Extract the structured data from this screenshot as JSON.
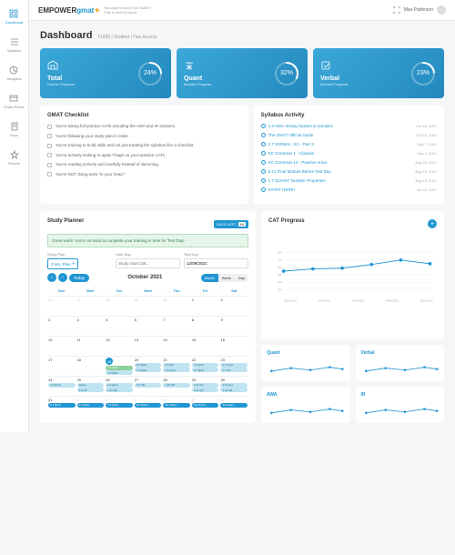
{
  "header": {
    "logo_empower": "EMPOWER",
    "logo_gmat": "gmat",
    "tagline1": "You want to beat The GMAT?",
    "tagline2": "This is how it's done.",
    "user_name": "Max Patterson"
  },
  "sidebar": {
    "items": [
      {
        "label": "Dashboard",
        "icon": "dashboard-icon",
        "active": true
      },
      {
        "label": "Syllabus",
        "icon": "syllabus-icon"
      },
      {
        "label": "Analytics",
        "icon": "analytics-icon"
      },
      {
        "label": "Exam Packs",
        "icon": "exampack-icon"
      },
      {
        "label": "Docs",
        "icon": "docs-icon"
      },
      {
        "label": "Review",
        "icon": "review-icon"
      }
    ]
  },
  "title": "Dashboard",
  "meta": "11995  |  Student  |  Has Access",
  "stats": [
    {
      "label": "Total",
      "sub": "Course Progress",
      "value": "24%",
      "pct": 24
    },
    {
      "label": "Quant",
      "sub": "Module Progress",
      "value": "32%",
      "pct": 32
    },
    {
      "label": "Verbal",
      "sub": "Module Progress",
      "value": "23%",
      "pct": 23
    }
  ],
  "checklist": {
    "title": "GMAT Checklist",
    "items": [
      "You're taking full practice CATs including the AWA and IR sections.",
      "You're following your study plan in order.",
      "You're training to build skills and not just treating the syllabus like a checklist.",
      "You're actively looking to apply Triage on your practice CATs.",
      "You're reading actively and carefully instead of skimming.",
      "You're NOT doing work \"in your head.\""
    ]
  },
  "syllabus_activity": {
    "title": "Syllabus Activity",
    "items": [
      {
        "name": "4.3 AWA: Essay System & Samples",
        "date": "Oct 18, 2021"
      },
      {
        "name": "The GMAT Official Guide",
        "date": "Oct 18, 2021"
      },
      {
        "name": "2.7 VERBAL: SC - Part 3",
        "date": "Sep 7, 2021"
      },
      {
        "name": "SC Grammar 1 - Clauses",
        "date": "Sep 4, 2021"
      },
      {
        "name": "SC Grammar 14 - Passive Voice",
        "date": "Aug 23, 2021"
      },
      {
        "name": "5.21 Final Module Before Test Day",
        "date": "Aug 13, 2021"
      },
      {
        "name": "1.7 QUANT: Number Properties",
        "date": "Aug 13, 2021"
      },
      {
        "name": "START HERE!",
        "date": "Jul 22, 2021"
      }
    ]
  },
  "planner": {
    "title": "Study Planner",
    "days_left_label": "DAYS LEFT",
    "days_left": "84",
    "success_msg": "Great work! You're on track to complete your training in time for Test Day!",
    "plan_label": "Study Plan",
    "plan_value": "3 Mo. Plan",
    "start_label": "Start Day",
    "start_placeholder": "Study Start Dat...",
    "test_label": "Test Day",
    "test_value": "12/09/2021",
    "month": "October 2021",
    "today_label": "Today",
    "views": [
      "Month",
      "Week",
      "Day"
    ],
    "weekdays": [
      "Sun",
      "Mon",
      "Tue",
      "Wed",
      "Thu",
      "Fri",
      "Sat"
    ]
  },
  "cat": {
    "title": "CAT Progress",
    "ylim": [
      300,
      800
    ],
    "ytick_step": 100,
    "x_labels": [
      "06/01/2021",
      "06/01/2021",
      "06/01/2021",
      "06/01/2021",
      "06/01/2021"
    ],
    "points": [
      550,
      580,
      590,
      640,
      700,
      650
    ],
    "line_color": "#2196d3",
    "grid_color": "#eeeeee"
  },
  "mini_charts": [
    {
      "label": "Quant"
    },
    {
      "label": "Verbal"
    },
    {
      "label": "AWA"
    },
    {
      "label": "IR"
    }
  ]
}
